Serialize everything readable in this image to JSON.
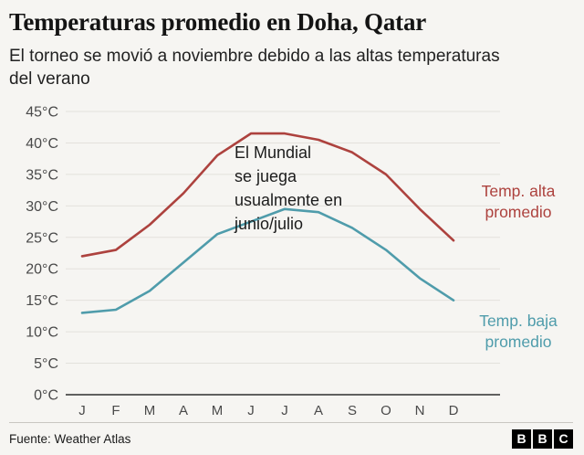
{
  "header": {
    "title": "Temperaturas promedio en Doha, Qatar",
    "subtitle": "El torneo se movió a noviembre debido a las altas temperaturas del verano"
  },
  "chart_data": {
    "type": "line",
    "title": "Temperaturas promedio en Doha, Qatar",
    "xlabel": "",
    "ylabel": "",
    "categories": [
      "J",
      "F",
      "M",
      "A",
      "M",
      "J",
      "J",
      "A",
      "S",
      "O",
      "N",
      "D"
    ],
    "series": [
      {
        "name": "Temp. alta promedio",
        "color": "#ad423e",
        "values": [
          22,
          23,
          27,
          32,
          38,
          41.5,
          41.5,
          40.5,
          38.5,
          35,
          29.5,
          24.5
        ]
      },
      {
        "name": "Temp. baja promedio",
        "color": "#4f9cab",
        "values": [
          13,
          13.5,
          16.5,
          21,
          25.5,
          27.5,
          29.5,
          29,
          26.5,
          23,
          18.5,
          15
        ]
      }
    ],
    "ylim": [
      0,
      45
    ],
    "ytick_step": 5,
    "ytick_suffix": "°C",
    "grid": true,
    "legend_position": "right",
    "annotation_lines": [
      "El Mundial",
      "se juega",
      "usualmente en",
      "junio/julio"
    ]
  },
  "footer": {
    "source": "Fuente: Weather Atlas",
    "logo_letters": [
      "B",
      "B",
      "C"
    ]
  }
}
